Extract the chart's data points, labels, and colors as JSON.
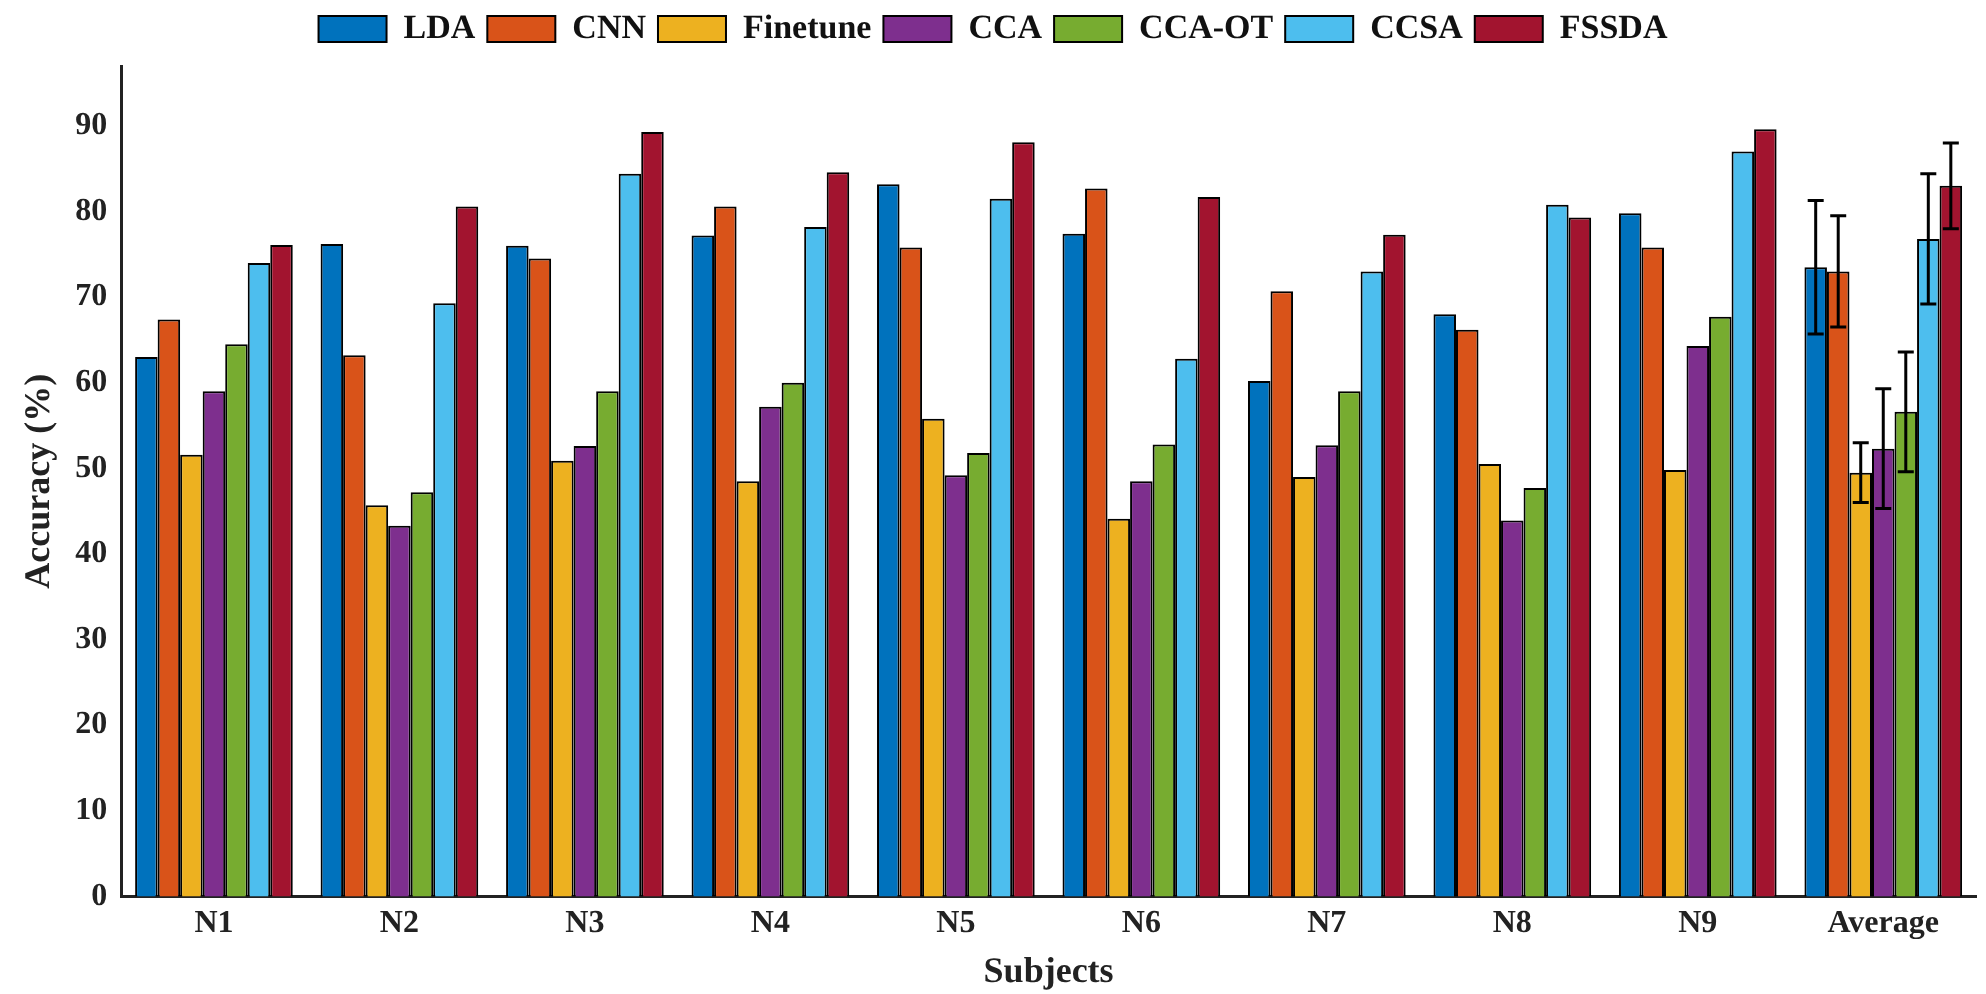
{
  "chart_data": {
    "type": "bar",
    "xlabel": "Subjects",
    "ylabel": "Accuracy (%)",
    "categories": [
      "N1",
      "N2",
      "N3",
      "N4",
      "N5",
      "N6",
      "N7",
      "N8",
      "N9",
      "Average"
    ],
    "series": [
      {
        "name": "LDA",
        "color": "#0072bd",
        "values": [
          63,
          76.2,
          76,
          77.2,
          83.2,
          77.4,
          60.2,
          68,
          79.8,
          73.5
        ],
        "errors": [
          null,
          null,
          null,
          null,
          null,
          null,
          null,
          null,
          null,
          7.8
        ]
      },
      {
        "name": "CNN",
        "color": "#d95319",
        "values": [
          67.4,
          63.2,
          74.5,
          80.6,
          75.8,
          82.7,
          70.7,
          66.2,
          75.8,
          73
        ],
        "errors": [
          null,
          null,
          null,
          null,
          null,
          null,
          null,
          null,
          null,
          6.5
        ]
      },
      {
        "name": "Finetune",
        "color": "#edb120",
        "values": [
          51.6,
          45.7,
          50.9,
          48.5,
          55.8,
          44.1,
          49,
          50.5,
          49.8,
          49.5
        ],
        "errors": [
          null,
          null,
          null,
          null,
          null,
          null,
          null,
          null,
          null,
          3.5
        ]
      },
      {
        "name": "CCA",
        "color": "#7e2f8e",
        "values": [
          59,
          43.3,
          52.6,
          57.2,
          49.2,
          48.5,
          52.7,
          43.9,
          64.3,
          52.3
        ],
        "errors": [
          null,
          null,
          null,
          null,
          null,
          null,
          null,
          null,
          null,
          7
        ]
      },
      {
        "name": "CCA-OT",
        "color": "#77ac30",
        "values": [
          64.5,
          47.2,
          59,
          60,
          51.8,
          52.8,
          59,
          47.7,
          67.7,
          56.6
        ],
        "errors": [
          null,
          null,
          null,
          null,
          null,
          null,
          null,
          null,
          null,
          7
        ]
      },
      {
        "name": "CCSA",
        "color": "#4dbeee",
        "values": [
          74,
          69.3,
          84.4,
          78.2,
          81.5,
          62.8,
          73,
          80.8,
          87,
          76.8
        ],
        "errors": [
          null,
          null,
          null,
          null,
          null,
          null,
          null,
          null,
          null,
          7.6
        ]
      },
      {
        "name": "FSSDA",
        "color": "#a2142f",
        "values": [
          76.1,
          80.6,
          89.3,
          84.6,
          88.1,
          81.7,
          77.3,
          79.3,
          89.6,
          83
        ],
        "errors": [
          null,
          null,
          null,
          null,
          null,
          null,
          null,
          null,
          null,
          5
        ]
      }
    ],
    "ylim": [
      0,
      97
    ],
    "yticks": [
      0,
      10,
      20,
      30,
      40,
      50,
      60,
      70,
      80,
      90
    ],
    "grid": false,
    "legend": "top"
  }
}
